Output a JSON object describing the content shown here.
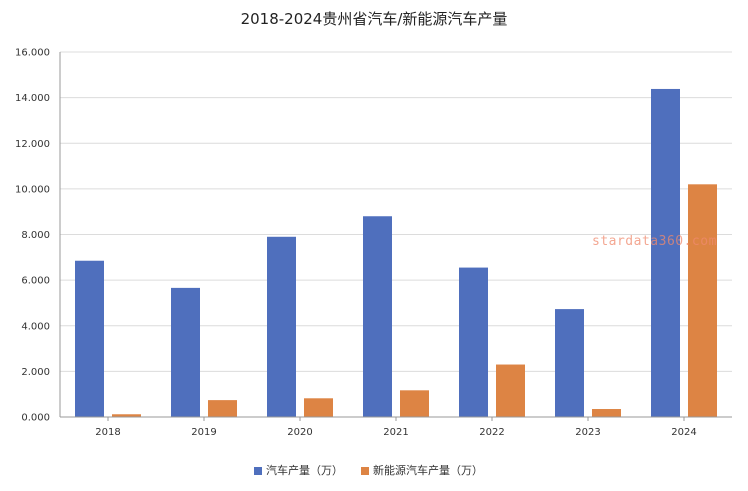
{
  "chart_data": {
    "type": "bar",
    "title": "2018-2024贵州省汽车/新能源汽车产量",
    "categories": [
      "2018",
      "2019",
      "2020",
      "2021",
      "2022",
      "2023",
      "2024"
    ],
    "series": [
      {
        "name": "汽车产量（万）",
        "color": "#4f6fbd",
        "values": [
          6.85,
          5.66,
          7.9,
          8.8,
          6.55,
          4.73,
          14.38
        ]
      },
      {
        "name": "新能源汽车产量（万）",
        "color": "#dd8444",
        "values": [
          0.12,
          0.74,
          0.82,
          1.17,
          2.3,
          0.35,
          10.2
        ]
      }
    ],
    "ylim": [
      0,
      16
    ],
    "yticks": [
      "0.000",
      "2.000",
      "4.000",
      "6.000",
      "8.000",
      "10.000",
      "12.000",
      "14.000",
      "16.000"
    ],
    "grid": true,
    "legend_position": "bottom-center"
  },
  "watermark": "stardata360.com"
}
